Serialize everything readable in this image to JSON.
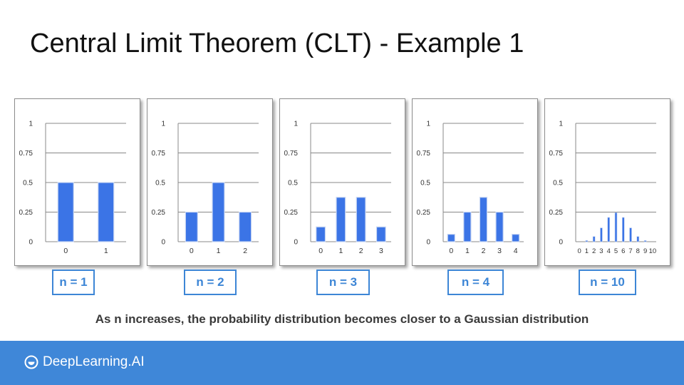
{
  "title": "Central Limit Theorem (CLT) - Example 1",
  "caption": "As n increases, the probability distribution becomes closer to a Gaussian distribution",
  "brand": {
    "name": "DeepLearning.AI"
  },
  "colors": {
    "bar": "#3b74e6",
    "accent": "#3d86d6",
    "footer": "#3f87d8",
    "grid": "#888888"
  },
  "chart_data": [
    {
      "type": "bar",
      "label": "n = 1",
      "categories": [
        "0",
        "1"
      ],
      "values": [
        0.5,
        0.5
      ],
      "ylim": [
        0,
        1
      ],
      "yticks": [
        "0",
        "0.25",
        "0.5",
        "0.75",
        "1"
      ],
      "grid": true
    },
    {
      "type": "bar",
      "label": "n = 2",
      "categories": [
        "0",
        "1",
        "2"
      ],
      "values": [
        0.25,
        0.5,
        0.25
      ],
      "ylim": [
        0,
        1
      ],
      "yticks": [
        "0",
        "0.25",
        "0.5",
        "0.75",
        "1"
      ],
      "grid": true
    },
    {
      "type": "bar",
      "label": "n = 3",
      "categories": [
        "0",
        "1",
        "2",
        "3"
      ],
      "values": [
        0.125,
        0.375,
        0.375,
        0.125
      ],
      "ylim": [
        0,
        1
      ],
      "yticks": [
        "0",
        "0.25",
        "0.5",
        "0.75",
        "1"
      ],
      "grid": true
    },
    {
      "type": "bar",
      "label": "n = 4",
      "categories": [
        "0",
        "1",
        "2",
        "3",
        "4"
      ],
      "values": [
        0.0625,
        0.25,
        0.375,
        0.25,
        0.0625
      ],
      "ylim": [
        0,
        1
      ],
      "yticks": [
        "0",
        "0.25",
        "0.5",
        "0.75",
        "1"
      ],
      "grid": true
    },
    {
      "type": "bar",
      "label": "n = 10",
      "categories": [
        "0",
        "1",
        "2",
        "3",
        "4",
        "5",
        "6",
        "7",
        "8",
        "9",
        "10"
      ],
      "values": [
        0.001,
        0.01,
        0.044,
        0.117,
        0.205,
        0.246,
        0.205,
        0.117,
        0.044,
        0.01,
        0.001
      ],
      "ylim": [
        0,
        1
      ],
      "yticks": [
        "0",
        "0.25",
        "0.5",
        "0.75",
        "1"
      ],
      "grid": true
    }
  ]
}
